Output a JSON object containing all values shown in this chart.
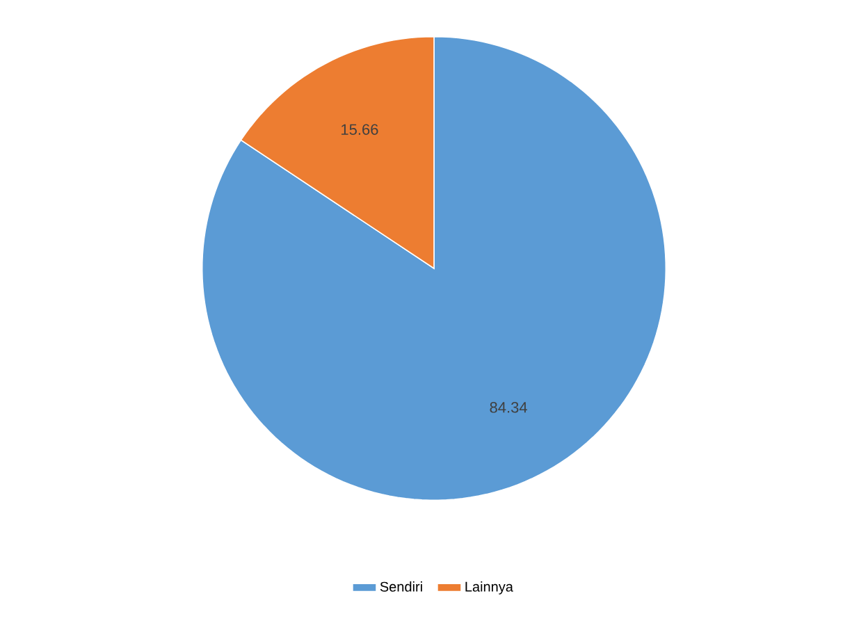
{
  "chart_data": {
    "type": "pie",
    "categories": [
      "Sendiri",
      "Lainnya"
    ],
    "values": [
      84.34,
      15.66
    ],
    "colors": [
      "#5b9bd5",
      "#ed7d31"
    ],
    "data_labels": true,
    "legend": "bottom"
  }
}
